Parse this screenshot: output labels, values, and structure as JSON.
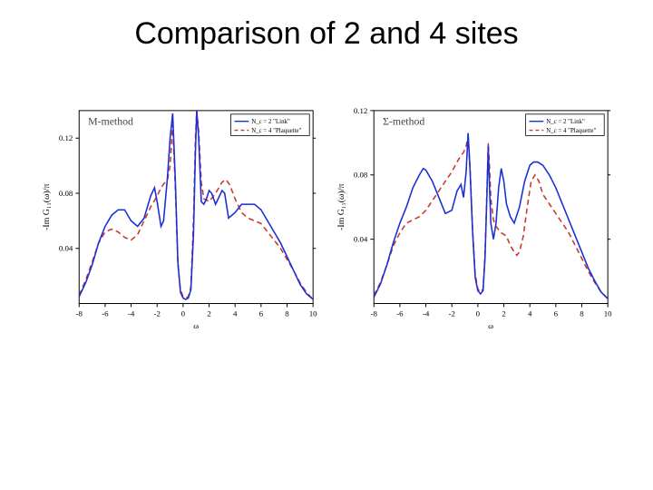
{
  "title": "Comparison of 2 and 4 sites",
  "structure_type": "dual-line-chart",
  "common": {
    "xlabel": "ω",
    "ylabel": "-Im G₁₁(ω)/π",
    "xlim": [
      -8,
      10
    ],
    "xticks": [
      -8,
      -6,
      -4,
      -2,
      0,
      2,
      4,
      6,
      8,
      10
    ],
    "background_color": "#ffffff",
    "axis_color": "#000000",
    "series_colors": {
      "link": "#1a2fd6",
      "plaquette": "#c93a2e"
    },
    "series_dash": {
      "link": "none",
      "plaquette": "6,4"
    },
    "line_width": 1.6,
    "legend": {
      "items": [
        {
          "key": "link",
          "label": "N_c = 2 \"Link\""
        },
        {
          "key": "plaquette",
          "label": "N_c = 4 \"Plaquette\""
        }
      ]
    }
  },
  "left": {
    "method_label": "M-method",
    "ylim": [
      0,
      0.14
    ],
    "yticks": [
      0.04,
      0.08,
      0.12
    ],
    "legend_pos": "topright-inner",
    "series": {
      "link": [
        [
          -8,
          0.005
        ],
        [
          -7.5,
          0.015
        ],
        [
          -7,
          0.028
        ],
        [
          -6.5,
          0.044
        ],
        [
          -6,
          0.056
        ],
        [
          -5.5,
          0.064
        ],
        [
          -5,
          0.068
        ],
        [
          -4.5,
          0.068
        ],
        [
          -4,
          0.06
        ],
        [
          -3.5,
          0.056
        ],
        [
          -3,
          0.062
        ],
        [
          -2.5,
          0.078
        ],
        [
          -2.2,
          0.084
        ],
        [
          -2,
          0.074
        ],
        [
          -1.7,
          0.056
        ],
        [
          -1.5,
          0.06
        ],
        [
          -1.2,
          0.092
        ],
        [
          -1,
          0.12
        ],
        [
          -0.8,
          0.138
        ],
        [
          -0.6,
          0.09
        ],
        [
          -0.4,
          0.03
        ],
        [
          -0.2,
          0.008
        ],
        [
          0,
          0.004
        ],
        [
          0.2,
          0.003
        ],
        [
          0.4,
          0.004
        ],
        [
          0.6,
          0.01
        ],
        [
          0.8,
          0.05
        ],
        [
          0.95,
          0.11
        ],
        [
          1.05,
          0.14
        ],
        [
          1.2,
          0.12
        ],
        [
          1.4,
          0.074
        ],
        [
          1.6,
          0.072
        ],
        [
          1.8,
          0.076
        ],
        [
          2.0,
          0.082
        ],
        [
          2.2,
          0.08
        ],
        [
          2.5,
          0.072
        ],
        [
          3,
          0.082
        ],
        [
          3.2,
          0.08
        ],
        [
          3.5,
          0.062
        ],
        [
          4,
          0.066
        ],
        [
          4.5,
          0.072
        ],
        [
          5,
          0.072
        ],
        [
          5.5,
          0.072
        ],
        [
          6,
          0.068
        ],
        [
          6.5,
          0.06
        ],
        [
          7,
          0.052
        ],
        [
          7.5,
          0.044
        ],
        [
          8,
          0.034
        ],
        [
          8.5,
          0.024
        ],
        [
          9,
          0.014
        ],
        [
          9.5,
          0.007
        ],
        [
          10,
          0.003
        ]
      ],
      "plaquette": [
        [
          -8,
          0.006
        ],
        [
          -7.5,
          0.017
        ],
        [
          -7,
          0.03
        ],
        [
          -6.5,
          0.044
        ],
        [
          -6,
          0.052
        ],
        [
          -5.5,
          0.054
        ],
        [
          -5,
          0.052
        ],
        [
          -4.5,
          0.048
        ],
        [
          -4,
          0.046
        ],
        [
          -3.5,
          0.05
        ],
        [
          -3,
          0.06
        ],
        [
          -2.5,
          0.07
        ],
        [
          -2,
          0.078
        ],
        [
          -1.7,
          0.084
        ],
        [
          -1.4,
          0.088
        ],
        [
          -1.2,
          0.09
        ],
        [
          -1.0,
          0.1
        ],
        [
          -0.8,
          0.13
        ],
        [
          -0.6,
          0.085
        ],
        [
          -0.4,
          0.028
        ],
        [
          -0.2,
          0.01
        ],
        [
          0,
          0.005
        ],
        [
          0.2,
          0.004
        ],
        [
          0.4,
          0.005
        ],
        [
          0.6,
          0.012
        ],
        [
          0.8,
          0.06
        ],
        [
          0.95,
          0.12
        ],
        [
          1.05,
          0.14
        ],
        [
          1.2,
          0.125
        ],
        [
          1.4,
          0.088
        ],
        [
          1.6,
          0.076
        ],
        [
          2.0,
          0.074
        ],
        [
          2.5,
          0.08
        ],
        [
          3.0,
          0.088
        ],
        [
          3.3,
          0.09
        ],
        [
          3.6,
          0.086
        ],
        [
          4,
          0.076
        ],
        [
          4.5,
          0.066
        ],
        [
          5,
          0.062
        ],
        [
          5.5,
          0.06
        ],
        [
          6,
          0.058
        ],
        [
          6.5,
          0.052
        ],
        [
          7,
          0.046
        ],
        [
          7.5,
          0.04
        ],
        [
          8,
          0.032
        ],
        [
          8.5,
          0.024
        ],
        [
          9,
          0.015
        ],
        [
          9.5,
          0.008
        ],
        [
          10,
          0.003
        ]
      ]
    }
  },
  "right": {
    "method_label": "Σ-method",
    "ylim": [
      0,
      0.12
    ],
    "yticks": [
      0.04,
      0.08,
      0.12
    ],
    "legend_pos": "topright-far",
    "series": {
      "link": [
        [
          -8,
          0.004
        ],
        [
          -7.5,
          0.012
        ],
        [
          -7,
          0.024
        ],
        [
          -6.5,
          0.038
        ],
        [
          -6,
          0.05
        ],
        [
          -5.5,
          0.06
        ],
        [
          -5,
          0.072
        ],
        [
          -4.5,
          0.08
        ],
        [
          -4.2,
          0.084
        ],
        [
          -4,
          0.083
        ],
        [
          -3.5,
          0.076
        ],
        [
          -3,
          0.066
        ],
        [
          -2.5,
          0.056
        ],
        [
          -2,
          0.058
        ],
        [
          -1.6,
          0.07
        ],
        [
          -1.3,
          0.074
        ],
        [
          -1.1,
          0.066
        ],
        [
          -0.9,
          0.082
        ],
        [
          -0.75,
          0.106
        ],
        [
          -0.6,
          0.083
        ],
        [
          -0.4,
          0.044
        ],
        [
          -0.2,
          0.016
        ],
        [
          0,
          0.008
        ],
        [
          0.2,
          0.006
        ],
        [
          0.4,
          0.008
        ],
        [
          0.55,
          0.028
        ],
        [
          0.7,
          0.068
        ],
        [
          0.8,
          0.098
        ],
        [
          0.9,
          0.072
        ],
        [
          1,
          0.05
        ],
        [
          1.2,
          0.04
        ],
        [
          1.4,
          0.05
        ],
        [
          1.6,
          0.072
        ],
        [
          1.8,
          0.084
        ],
        [
          2.0,
          0.076
        ],
        [
          2.2,
          0.062
        ],
        [
          2.5,
          0.054
        ],
        [
          2.8,
          0.05
        ],
        [
          3.2,
          0.06
        ],
        [
          3.6,
          0.076
        ],
        [
          4.0,
          0.086
        ],
        [
          4.3,
          0.088
        ],
        [
          4.6,
          0.088
        ],
        [
          5.0,
          0.086
        ],
        [
          5.5,
          0.08
        ],
        [
          6,
          0.072
        ],
        [
          6.5,
          0.062
        ],
        [
          7,
          0.052
        ],
        [
          7.5,
          0.042
        ],
        [
          8,
          0.032
        ],
        [
          8.5,
          0.022
        ],
        [
          9,
          0.014
        ],
        [
          9.5,
          0.007
        ],
        [
          10,
          0.003
        ]
      ],
      "plaquette": [
        [
          -8,
          0.005
        ],
        [
          -7.5,
          0.013
        ],
        [
          -7,
          0.024
        ],
        [
          -6.5,
          0.036
        ],
        [
          -6,
          0.044
        ],
        [
          -5.5,
          0.05
        ],
        [
          -5,
          0.052
        ],
        [
          -4.5,
          0.054
        ],
        [
          -4,
          0.058
        ],
        [
          -3.5,
          0.064
        ],
        [
          -3,
          0.07
        ],
        [
          -2.5,
          0.076
        ],
        [
          -2,
          0.082
        ],
        [
          -1.6,
          0.088
        ],
        [
          -1.3,
          0.092
        ],
        [
          -1.1,
          0.094
        ],
        [
          -0.9,
          0.098
        ],
        [
          -0.75,
          0.104
        ],
        [
          -0.6,
          0.085
        ],
        [
          -0.4,
          0.045
        ],
        [
          -0.2,
          0.018
        ],
        [
          0,
          0.009
        ],
        [
          0.2,
          0.007
        ],
        [
          0.4,
          0.009
        ],
        [
          0.55,
          0.03
        ],
        [
          0.7,
          0.07
        ],
        [
          0.8,
          0.1
        ],
        [
          0.9,
          0.085
        ],
        [
          1.0,
          0.065
        ],
        [
          1.2,
          0.052
        ],
        [
          1.4,
          0.048
        ],
        [
          1.8,
          0.044
        ],
        [
          2.2,
          0.042
        ],
        [
          2.5,
          0.036
        ],
        [
          2.8,
          0.032
        ],
        [
          3.0,
          0.03
        ],
        [
          3.2,
          0.032
        ],
        [
          3.5,
          0.042
        ],
        [
          3.8,
          0.06
        ],
        [
          4.1,
          0.076
        ],
        [
          4.4,
          0.08
        ],
        [
          4.7,
          0.076
        ],
        [
          5.0,
          0.068
        ],
        [
          5.5,
          0.062
        ],
        [
          6,
          0.056
        ],
        [
          6.5,
          0.05
        ],
        [
          7,
          0.044
        ],
        [
          7.5,
          0.036
        ],
        [
          8,
          0.028
        ],
        [
          8.5,
          0.02
        ],
        [
          9,
          0.013
        ],
        [
          9.5,
          0.007
        ],
        [
          10,
          0.003
        ]
      ]
    }
  }
}
